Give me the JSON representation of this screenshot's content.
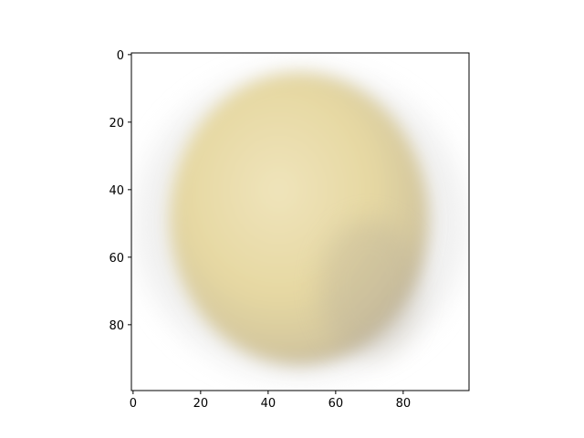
{
  "figure": {
    "type": "image",
    "x_ticks": [
      "0",
      "20",
      "40",
      "60",
      "80"
    ],
    "y_ticks": [
      "0",
      "20",
      "40",
      "60",
      "80"
    ],
    "x_range": [
      -0.5,
      99.5
    ],
    "y_range": [
      -0.5,
      99.5
    ],
    "colors": {
      "background": "#ffffff",
      "axes_frame": "#000000",
      "image_fill": "#e8dba8",
      "image_highlight": "#efe4bb",
      "image_shadow": "#bdb29c",
      "image_halo": "#e4e4e4"
    },
    "subject": "blurred-pale-yellow-sphere"
  }
}
